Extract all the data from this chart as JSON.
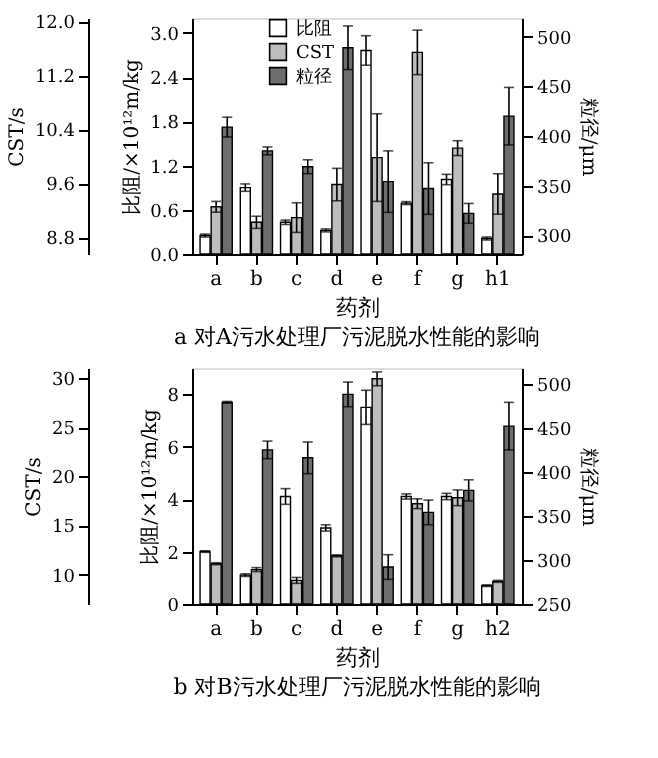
{
  "chart_data": [
    {
      "type": "bar",
      "title": "a 对A污水处理厂污泥脱水性能的影响",
      "xlabel": "药剂",
      "ylabel": "比阻/×10¹²m/kg",
      "y3label": "CST/s",
      "y2label": "粒径/μm",
      "categories": [
        "a",
        "b",
        "c",
        "d",
        "e",
        "f",
        "g",
        "h1"
      ],
      "series": [
        {
          "name": "比阻",
          "color": "#ffffff",
          "axis": "y",
          "values": [
            0.25,
            0.9,
            0.43,
            0.32,
            2.76,
            0.69,
            1.01,
            0.21
          ],
          "errors": [
            0.02,
            0.05,
            0.03,
            0.02,
            0.2,
            0.02,
            0.07,
            0.02
          ]
        },
        {
          "name": "CST",
          "color": "#bdbdbd",
          "axis": "y3",
          "values": [
            9.25,
            9.02,
            9.09,
            9.58,
            9.98,
            11.54,
            10.12,
            9.44
          ],
          "errors": [
            0.08,
            0.09,
            0.22,
            0.24,
            0.65,
            0.33,
            0.11,
            0.3
          ]
        },
        {
          "name": "粒径",
          "color": "#6e6e6e",
          "axis": "y2",
          "values": [
            409,
            385,
            369,
            489,
            354,
            347,
            322,
            420
          ],
          "errors": [
            10,
            4,
            7,
            22,
            31,
            26,
            10,
            29
          ]
        }
      ],
      "ylim": [
        0,
        3.2
      ],
      "yticks": [
        {
          "value": 0,
          "label": "0.0"
        },
        0.6,
        1.2,
        1.8,
        2.4,
        {
          "value": 3,
          "label": "3.0"
        }
      ],
      "y3lim": [
        8.55,
        12.05
      ],
      "y3ticks": [
        8.8,
        9.6,
        10.4,
        11.2,
        {
          "value": 12,
          "label": "12.0"
        }
      ],
      "y2lim": [
        281,
        519
      ],
      "y2ticks": [
        300,
        350,
        400,
        450,
        500
      ],
      "legend": "top left"
    },
    {
      "type": "bar",
      "title": "b 对B污水处理厂污泥脱水性能的影响",
      "xlabel": "药剂",
      "ylabel": "比阻/×10¹²m/kg",
      "y3label": "CST/s",
      "y2label": "粒径/μm",
      "categories": [
        "a",
        "b",
        "c",
        "d",
        "e",
        "f",
        "g",
        "h2"
      ],
      "series": [
        {
          "color": "#ffffff",
          "axis": "y",
          "values": [
            2.0,
            1.1,
            4.1,
            2.9,
            7.5,
            4.1,
            4.1,
            0.7
          ],
          "errors": [
            0.03,
            0.05,
            0.3,
            0.12,
            0.65,
            0.1,
            0.12,
            0.03
          ]
        },
        {
          "color": "#bdbdbd",
          "axis": "y3",
          "values": [
            11.1,
            10.5,
            9.4,
            11.9,
            29.9,
            17.2,
            17.8,
            9.3
          ],
          "errors": [
            0.1,
            0.2,
            0.3,
            0.1,
            0.7,
            0.5,
            0.8,
            0.1
          ]
        },
        {
          "color": "#6e6e6e",
          "axis": "y2",
          "values": [
            479,
            425,
            416,
            488,
            292,
            354,
            379,
            452
          ],
          "errors": [
            1,
            10,
            18,
            14,
            14,
            14,
            12,
            27
          ]
        }
      ],
      "ylim": [
        0,
        9
      ],
      "yticks": [
        0,
        2,
        4,
        6,
        8
      ],
      "y3lim": [
        7,
        31
      ],
      "y3ticks": [
        10,
        15,
        20,
        25,
        30
      ],
      "y2lim": [
        250,
        518
      ],
      "y2ticks": [
        250,
        300,
        350,
        400,
        450,
        500
      ]
    }
  ]
}
